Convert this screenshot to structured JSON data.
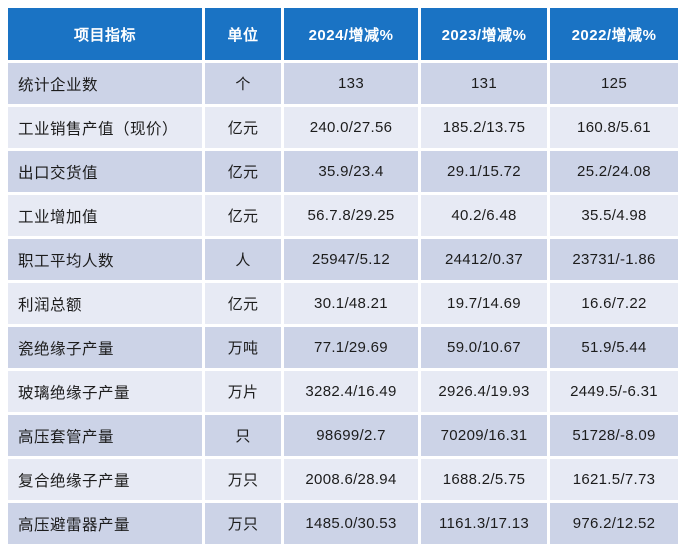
{
  "colors": {
    "header_bg": "#1a73c4",
    "header_text": "#ffffff",
    "row_odd_bg": "#ccd3e7",
    "row_even_bg": "#e7eaf4",
    "body_text": "#1c1c1c",
    "separator": "#ffffff"
  },
  "table": {
    "headers": {
      "indicator": "项目指标",
      "unit": "单位",
      "y2024": "2024/增减%",
      "y2023": "2023/增减%",
      "y2022": "2022/增减%"
    },
    "rows": [
      {
        "indicator": "统计企业数",
        "unit": "个",
        "y2024": "133",
        "y2023": "131",
        "y2022": "125"
      },
      {
        "indicator": "工业销售产值（现价）",
        "unit": "亿元",
        "y2024": "240.0/27.56",
        "y2023": "185.2/13.75",
        "y2022": "160.8/5.61"
      },
      {
        "indicator": "出口交货值",
        "unit": "亿元",
        "y2024": "35.9/23.4",
        "y2023": "29.1/15.72",
        "y2022": "25.2/24.08"
      },
      {
        "indicator": "工业增加值",
        "unit": "亿元",
        "y2024": "56.7.8/29.25",
        "y2023": "40.2/6.48",
        "y2022": "35.5/4.98"
      },
      {
        "indicator": "职工平均人数",
        "unit": "人",
        "y2024": "25947/5.12",
        "y2023": "24412/0.37",
        "y2022": "23731/-1.86"
      },
      {
        "indicator": "利润总额",
        "unit": "亿元",
        "y2024": "30.1/48.21",
        "y2023": "19.7/14.69",
        "y2022": "16.6/7.22"
      },
      {
        "indicator": "瓷绝缘子产量",
        "unit": "万吨",
        "y2024": "77.1/29.69",
        "y2023": "59.0/10.67",
        "y2022": "51.9/5.44"
      },
      {
        "indicator": "玻璃绝缘子产量",
        "unit": "万片",
        "y2024": "3282.4/16.49",
        "y2023": "2926.4/19.93",
        "y2022": "2449.5/-6.31"
      },
      {
        "indicator": "高压套管产量",
        "unit": "只",
        "y2024": "98699/2.7",
        "y2023": "70209/16.31",
        "y2022": "51728/-8.09"
      },
      {
        "indicator": "复合绝缘子产量",
        "unit": "万只",
        "y2024": "2008.6/28.94",
        "y2023": "1688.2/5.75",
        "y2022": "1621.5/7.73"
      },
      {
        "indicator": "高压避雷器产量",
        "unit": "万只",
        "y2024": "1485.0/30.53",
        "y2023": "1161.3/17.13",
        "y2022": "976.2/12.52"
      }
    ]
  },
  "chart_data": {
    "type": "table",
    "title": "",
    "columns": [
      "项目指标",
      "单位",
      "2024/增减%",
      "2023/增减%",
      "2022/增减%"
    ],
    "rows": [
      [
        "统计企业数",
        "个",
        "133",
        "131",
        "125"
      ],
      [
        "工业销售产值（现价）",
        "亿元",
        "240.0/27.56",
        "185.2/13.75",
        "160.8/5.61"
      ],
      [
        "出口交货值",
        "亿元",
        "35.9/23.4",
        "29.1/15.72",
        "25.2/24.08"
      ],
      [
        "工业增加值",
        "亿元",
        "56.7.8/29.25",
        "40.2/6.48",
        "35.5/4.98"
      ],
      [
        "职工平均人数",
        "人",
        "25947/5.12",
        "24412/0.37",
        "23731/-1.86"
      ],
      [
        "利润总额",
        "亿元",
        "30.1/48.21",
        "19.7/14.69",
        "16.6/7.22"
      ],
      [
        "瓷绝缘子产量",
        "万吨",
        "77.1/29.69",
        "59.0/10.67",
        "51.9/5.44"
      ],
      [
        "玻璃绝缘子产量",
        "万片",
        "3282.4/16.49",
        "2926.4/19.93",
        "2449.5/-6.31"
      ],
      [
        "高压套管产量",
        "只",
        "98699/2.7",
        "70209/16.31",
        "51728/-8.09"
      ],
      [
        "复合绝缘子产量",
        "万只",
        "2008.6/28.94",
        "1688.2/5.75",
        "1621.5/7.73"
      ],
      [
        "高压避雷器产量",
        "万只",
        "1485.0/30.53",
        "1161.3/17.13",
        "976.2/12.52"
      ]
    ]
  }
}
